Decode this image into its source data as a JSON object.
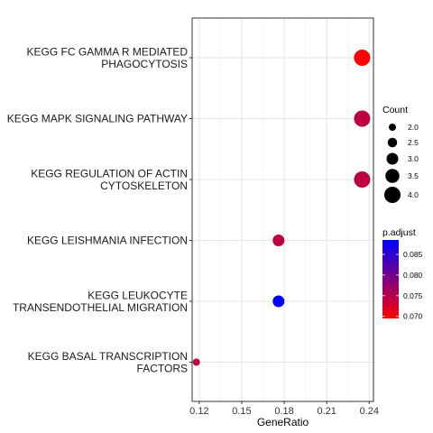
{
  "chart_data": {
    "type": "scatter",
    "title": "",
    "xlabel": "GeneRatio",
    "ylabel": "",
    "xlim": [
      0.115,
      0.243
    ],
    "xticks": [
      0.12,
      0.15,
      0.18,
      0.21,
      0.24
    ],
    "xtick_labels": [
      "0.12",
      "0.15",
      "0.18",
      "0.21",
      "0.24"
    ],
    "grid": true,
    "legend_position": "right",
    "categories": [
      [
        "KEGG FC GAMMA R MEDIATED",
        "PHAGOCYTOSIS"
      ],
      [
        "KEGG MAPK SIGNALING PATHWAY"
      ],
      [
        "KEGG REGULATION OF ACTIN",
        "CYTOSKELETON"
      ],
      [
        "KEGG LEISHMANIA INFECTION"
      ],
      [
        "KEGG LEUKOCYTE",
        "TRANSENDOTHELIAL MIGRATION"
      ],
      [
        "KEGG BASAL TRANSCRIPTION",
        "FACTORS"
      ]
    ],
    "points": [
      {
        "gene_ratio": 0.235,
        "count": 4,
        "p_adjust": 0.0695
      },
      {
        "gene_ratio": 0.235,
        "count": 4,
        "p_adjust": 0.0745
      },
      {
        "gene_ratio": 0.235,
        "count": 4,
        "p_adjust": 0.0745
      },
      {
        "gene_ratio": 0.176,
        "count": 3,
        "p_adjust": 0.0745
      },
      {
        "gene_ratio": 0.176,
        "count": 3,
        "p_adjust": 0.0885
      },
      {
        "gene_ratio": 0.118,
        "count": 2,
        "p_adjust": 0.0745
      }
    ],
    "size_legend": {
      "title": "Count",
      "breaks": [
        2.0,
        2.5,
        3.0,
        3.5,
        4.0
      ],
      "labels": [
        "2.0",
        "2.5",
        "3.0",
        "3.5",
        "4.0"
      ]
    },
    "color_legend": {
      "title": "p.adjust",
      "range": [
        0.0695,
        0.0885
      ],
      "low_color": "#ff0000",
      "high_color": "#0000ff",
      "breaks": [
        0.07,
        0.075,
        0.08,
        0.085
      ],
      "labels": [
        "0.070",
        "0.075",
        "0.080",
        "0.085"
      ]
    }
  }
}
